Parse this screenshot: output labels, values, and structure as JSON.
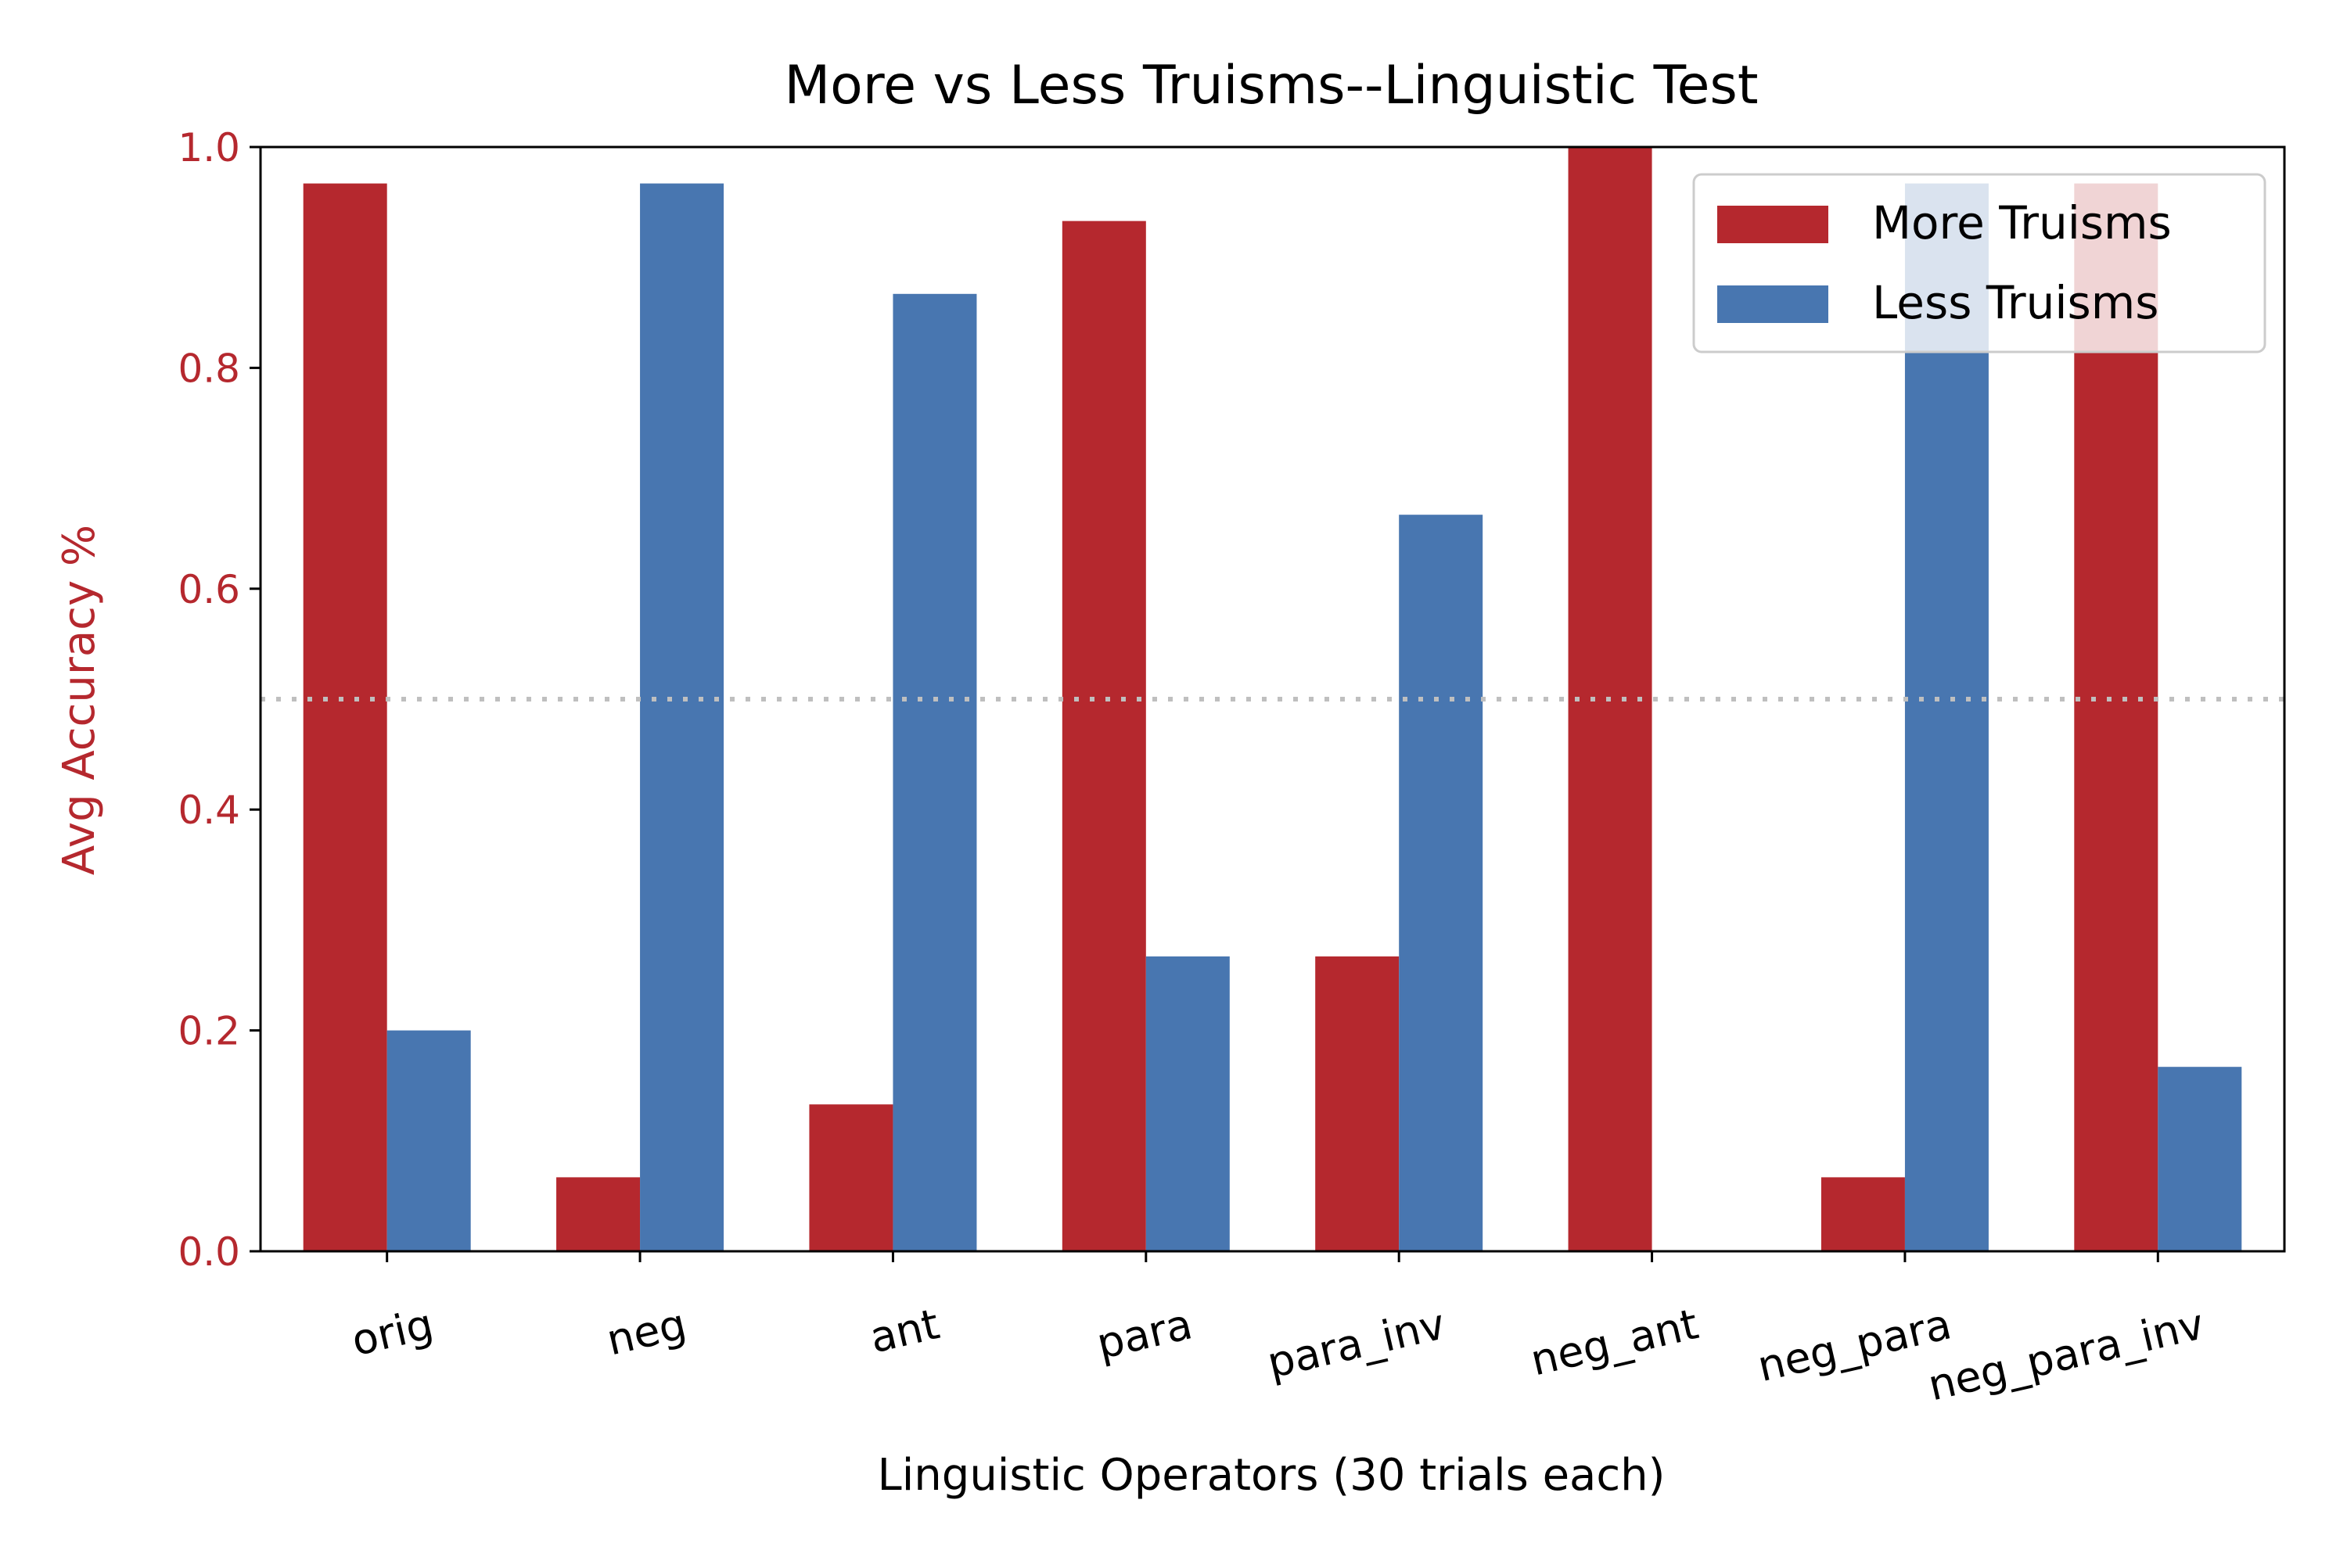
{
  "chart_data": {
    "type": "bar",
    "title": "More vs Less Truisms--Linguistic Test",
    "xlabel": "Linguistic Operators (30 trials each)",
    "ylabel": "Avg Accuracy %",
    "ylim": [
      0,
      1.0
    ],
    "yticks": [
      "0.0",
      "0.2",
      "0.4",
      "0.6",
      "0.8",
      "1.0"
    ],
    "categories": [
      "orig",
      "neg",
      "ant",
      "para",
      "para_inv",
      "neg_ant",
      "neg_para",
      "neg_para_inv"
    ],
    "series": [
      {
        "name": "More Truisms",
        "color": "#b5282e",
        "values": [
          0.967,
          0.067,
          0.133,
          0.933,
          0.267,
          1.0,
          0.067,
          0.967
        ]
      },
      {
        "name": "Less Truisms",
        "color": "#4876b0",
        "values": [
          0.2,
          0.967,
          0.867,
          0.267,
          0.667,
          0.0,
          0.967,
          0.167
        ]
      }
    ],
    "reference_line": {
      "y": 0.5,
      "style": "dotted",
      "color": "#bfbfbf"
    },
    "legend_position": "top-right",
    "ylabel_color": "#b5282e",
    "ytick_color": "#b5282e",
    "grid": false
  }
}
